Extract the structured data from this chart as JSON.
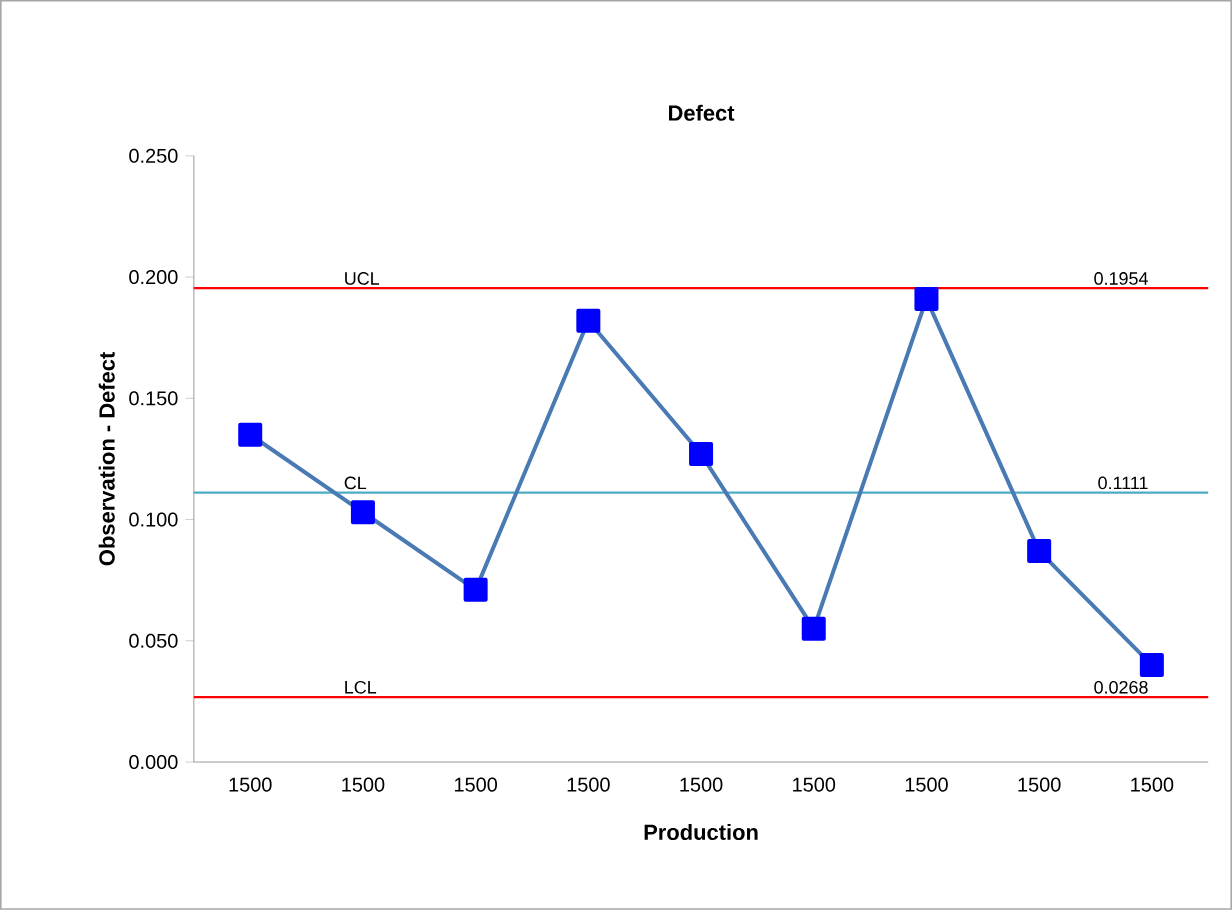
{
  "chart_data": {
    "type": "line",
    "title": "Defect",
    "xlabel": "Production",
    "ylabel": "Observation - Defect",
    "categories": [
      "1500",
      "1500",
      "1500",
      "1500",
      "1500",
      "1500",
      "1500",
      "1500",
      "1500"
    ],
    "series": [
      {
        "color": "#4a7ab4",
        "values": [
          0.135,
          0.103,
          0.071,
          0.182,
          0.127,
          0.055,
          0.191,
          0.087,
          0.04
        ]
      }
    ],
    "marker": "square",
    "line_style": "solid",
    "ylim": [
      0,
      0.25
    ],
    "yticks": [
      {
        "value": 0,
        "label": "0.000"
      },
      {
        "value": 0.05,
        "label": "0.050"
      },
      {
        "value": 0.1,
        "label": "0.100"
      },
      {
        "value": 0.15,
        "label": "0.150"
      },
      {
        "value": 0.2,
        "label": "0.200"
      },
      {
        "value": 0.25,
        "label": "0.250"
      }
    ],
    "ref_lines": [
      {
        "axis": "y",
        "value": 0.1954,
        "label": "UCL",
        "color": "#ff0000"
      },
      {
        "axis": "y",
        "value": 0.1111,
        "label": "CL",
        "color": "#4bacc6"
      },
      {
        "axis": "y",
        "value": 0.0268,
        "label": "LCL",
        "color": "#ff0000"
      }
    ],
    "annotations": [
      {
        "text": "0.1954",
        "y": 0.1954
      },
      {
        "text": "0.1111",
        "y": 0.1111
      },
      {
        "text": "0.0268",
        "y": 0.0268
      }
    ]
  }
}
